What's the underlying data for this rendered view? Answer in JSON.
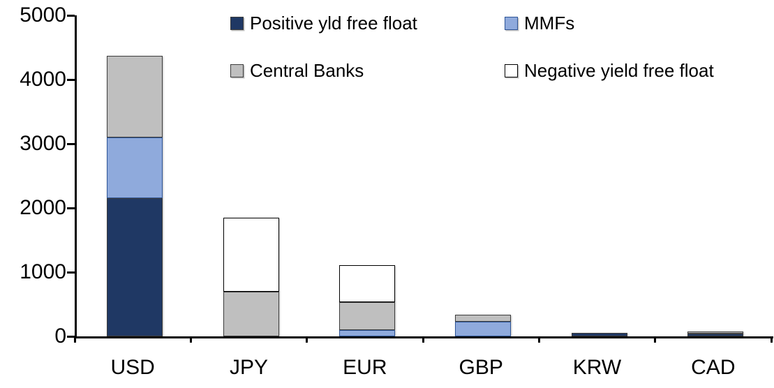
{
  "chart_data": {
    "type": "bar",
    "stacked": true,
    "title": "",
    "xlabel": "",
    "ylabel": "",
    "categories": [
      "USD",
      "JPY",
      "EUR",
      "GBP",
      "KRW",
      "CAD"
    ],
    "series": [
      {
        "name": "Positive yld free float",
        "color": "#1F3864",
        "border": "#3d3d3d",
        "values": [
          2150,
          0,
          0,
          0,
          50,
          45
        ]
      },
      {
        "name": "MMFs",
        "color": "#8FAADC",
        "border": "#2E5597",
        "values": [
          950,
          0,
          100,
          225,
          0,
          0
        ]
      },
      {
        "name": "Central Banks",
        "color": "#BFBFBF",
        "border": "#3d3d3d",
        "values": [
          1275,
          700,
          435,
          110,
          0,
          30
        ]
      },
      {
        "name": "Negative yield free float",
        "color": "#FFFFFF",
        "border": "#000000",
        "values": [
          0,
          1150,
          575,
          0,
          0,
          0
        ]
      }
    ],
    "ylim": [
      0,
      5000
    ],
    "yticks": [
      0,
      1000,
      2000,
      3000,
      4000,
      5000
    ],
    "grid": false,
    "legend_position": "top",
    "axis_color": "#000000"
  }
}
